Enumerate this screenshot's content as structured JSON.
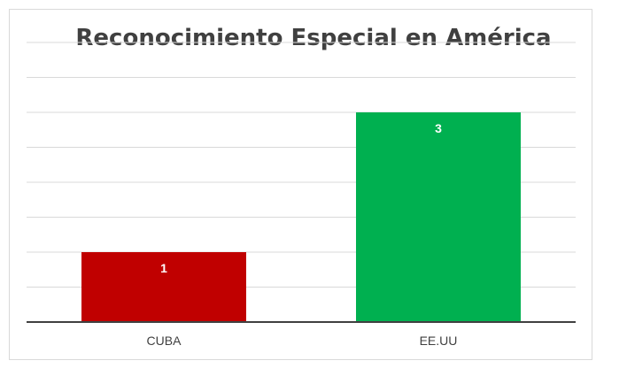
{
  "chart_data": {
    "type": "bar",
    "title": "Reconocimiento Especial en América",
    "categories": [
      "CUBA",
      "EE.UU"
    ],
    "values": [
      1,
      3
    ],
    "colors": [
      "#c00000",
      "#00b050"
    ],
    "ylim": [
      0,
      4
    ],
    "grid": true,
    "data_labels": true,
    "xlabel": "",
    "ylabel": ""
  }
}
